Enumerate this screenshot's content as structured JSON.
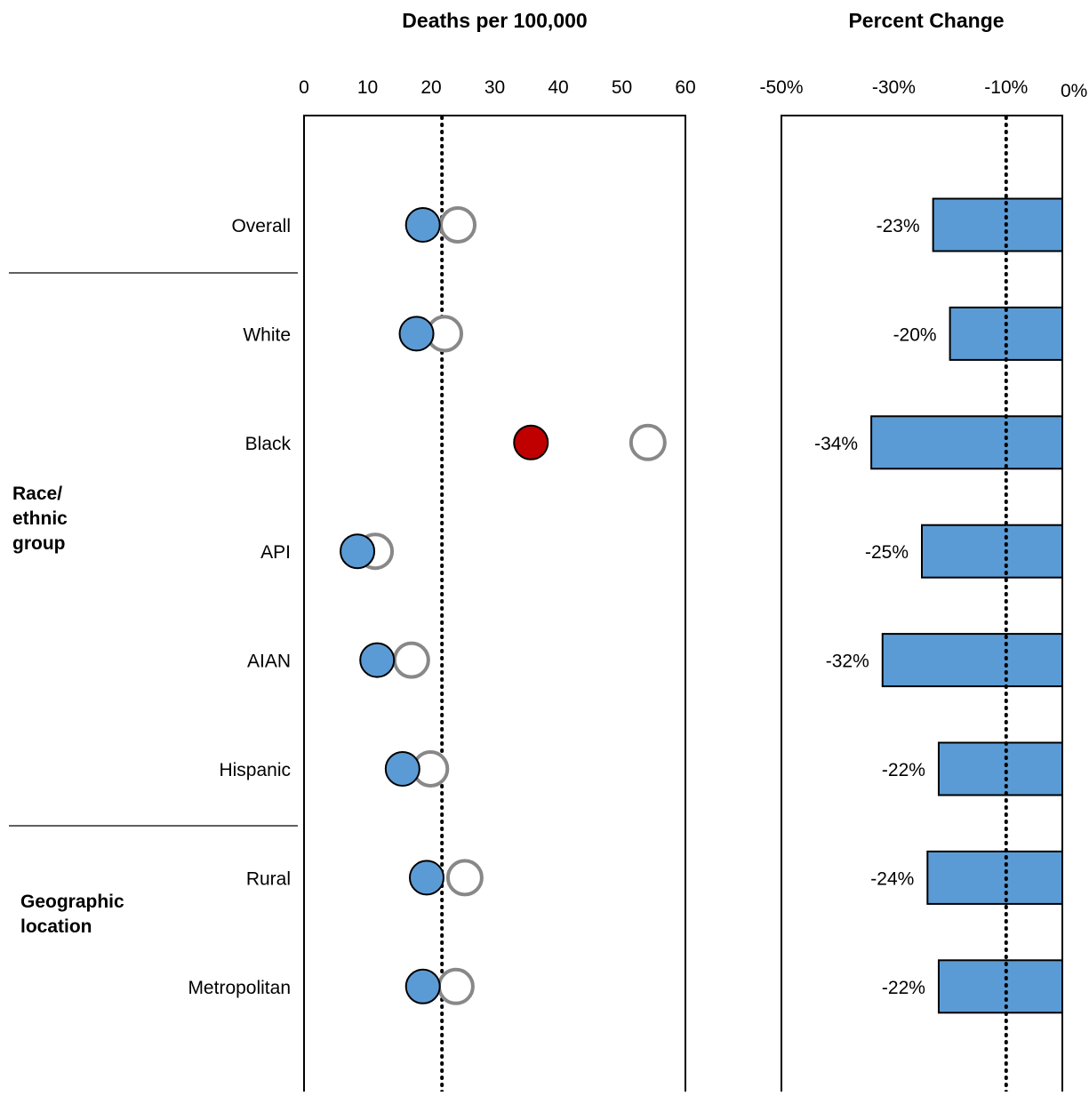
{
  "chart_data": [
    {
      "type": "scatter",
      "title": "Deaths per 100,000",
      "xlabel": "",
      "ylabel": "",
      "xlim": [
        0,
        60
      ],
      "xticks": [
        0,
        10,
        20,
        30,
        40,
        50,
        60
      ],
      "reference_line": 21.7,
      "grid": false,
      "categories": [
        "Overall",
        "White",
        "Black",
        "API",
        "AIAN",
        "Hispanic",
        "Rural",
        "Metropolitan"
      ],
      "series": [
        {
          "values": [
            18.7,
            17.7,
            35.7,
            8.4,
            11.5,
            15.5,
            19.3,
            18.7
          ]
        },
        {
          "values": [
            24.2,
            22.1,
            54.1,
            11.2,
            16.9,
            19.9,
            25.3,
            23.9
          ]
        }
      ],
      "highlight": {
        "category": "Black",
        "color": "#c00000"
      }
    },
    {
      "type": "bar",
      "title": "Percent Change",
      "xlabel": "",
      "ylabel": "",
      "xlim": [
        -50,
        0
      ],
      "xticks": [
        -50,
        -30,
        -10,
        0
      ],
      "xtick_labels": [
        "-50%",
        "-30%",
        "-10%",
        "0%"
      ],
      "reference_line": -10,
      "grid": false,
      "orientation": "horizontal",
      "categories": [
        "Overall",
        "White",
        "Black",
        "API",
        "AIAN",
        "Hispanic",
        "Rural",
        "Metropolitan"
      ],
      "values": [
        -23,
        -20,
        -34,
        -25,
        -32,
        -22,
        -24,
        -22
      ],
      "data_labels": [
        "-23%",
        "-20%",
        "-34%",
        "-25%",
        "-32%",
        "-22%",
        "-24%",
        "-22%"
      ]
    }
  ],
  "groups": [
    {
      "label_lines": [
        "Race/",
        "ethnic",
        "group"
      ],
      "categories": [
        "White",
        "Black",
        "API",
        "AIAN",
        "Hispanic"
      ]
    },
    {
      "label_lines": [
        "Geographic",
        "location"
      ],
      "categories": [
        "Rural",
        "Metropolitan"
      ]
    }
  ],
  "colors": {
    "filled_marker": "#5b9bd5",
    "highlight_marker": "#c00000",
    "open_marker_stroke": "#888888",
    "bar_fill": "#5b9bd5",
    "axis": "#000000"
  }
}
